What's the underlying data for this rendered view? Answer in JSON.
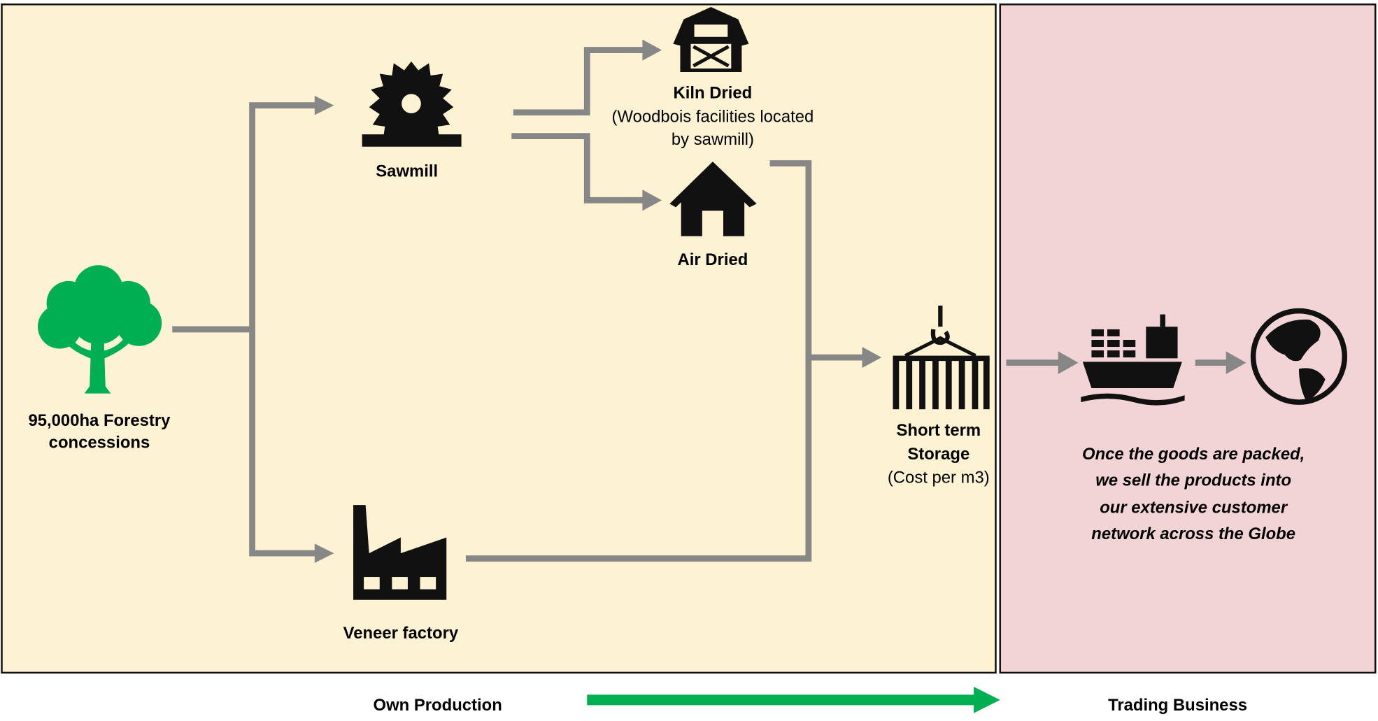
{
  "nodes": [
    {
      "lines": [
        "95,000ha Forestry",
        "concessions"
      ]
    },
    {
      "lines": [
        "Sawmill"
      ]
    },
    {
      "lines": [
        "Kiln Dried"
      ],
      "note": [
        "(Woodbois facilities located",
        "by sawmill)"
      ]
    },
    {
      "lines": [
        "Air Dried"
      ]
    },
    {
      "lines": [
        "Veneer factory"
      ]
    },
    {
      "lines": [
        "Short term",
        "Storage"
      ],
      "note": [
        "(Cost per m3)"
      ]
    }
  ],
  "trading": {
    "description": [
      "Once the goods are packed,",
      "we sell the products into",
      "our extensive customer",
      "network across the Globe"
    ]
  },
  "footer": {
    "left": "Own Production",
    "right": "Trading Business"
  }
}
